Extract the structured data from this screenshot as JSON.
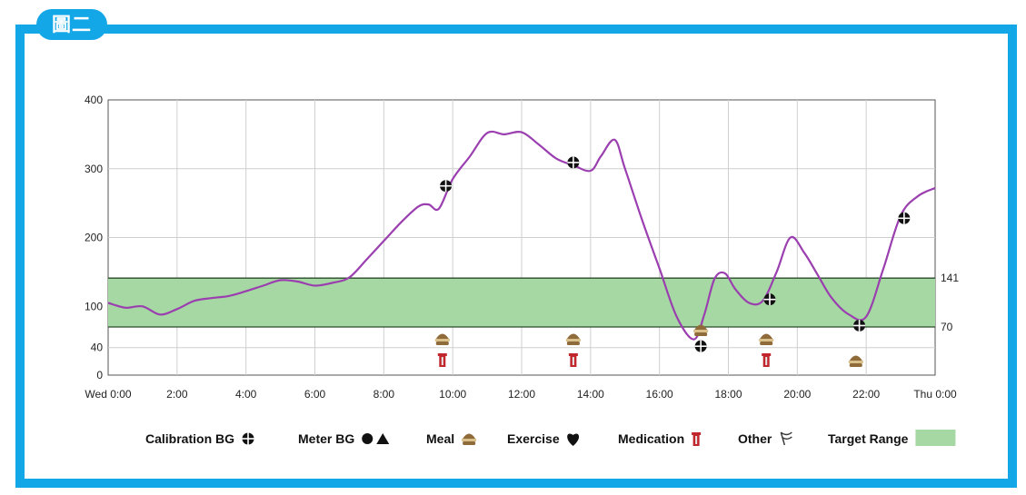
{
  "badge_label": "圖二",
  "colors": {
    "frame": "#14a7e8",
    "curve": "#9b3fb0",
    "target_fill": "#a5d8a2",
    "target_border": "#2a4a2a",
    "medication": "#c0262c",
    "meal": "#8f6a3a"
  },
  "chart_data": {
    "type": "line",
    "xlabel": "",
    "ylabel": "",
    "x_ticks": [
      "Wed 0:00",
      "2:00",
      "4:00",
      "6:00",
      "8:00",
      "10:00",
      "12:00",
      "14:00",
      "16:00",
      "18:00",
      "20:00",
      "22:00",
      "Thu 0:00"
    ],
    "y_ticks": [
      0,
      40,
      100,
      200,
      300,
      400
    ],
    "target_range_labels": [
      "141",
      "70"
    ],
    "xlim_hours": [
      0,
      24
    ],
    "ylim": [
      0,
      400
    ],
    "target_range": [
      70,
      141
    ],
    "grid": true,
    "series": [
      {
        "x_hours": [
          0,
          0.5,
          1,
          1.5,
          2,
          2.5,
          3,
          3.5,
          4,
          4.5,
          5,
          5.5,
          6,
          6.5,
          7,
          7.5,
          8,
          8.5,
          9,
          9.3,
          9.6,
          10,
          10.5,
          11,
          11.5,
          12,
          12.5,
          13,
          13.5,
          14,
          14.3,
          14.7,
          15,
          15.5,
          16,
          16.5,
          17,
          17.3,
          17.6,
          17.9,
          18.2,
          18.6,
          19,
          19.4,
          19.8,
          20.2,
          20.6,
          21,
          21.5,
          22,
          22.5,
          23,
          23.5,
          24
        ],
        "values": [
          105,
          98,
          100,
          88,
          96,
          108,
          112,
          115,
          122,
          130,
          138,
          136,
          130,
          134,
          142,
          168,
          195,
          222,
          245,
          248,
          242,
          285,
          318,
          352,
          350,
          353,
          335,
          315,
          305,
          297,
          318,
          342,
          300,
          225,
          155,
          85,
          52,
          88,
          140,
          148,
          125,
          105,
          108,
          150,
          200,
          178,
          145,
          112,
          88,
          85,
          155,
          232,
          260,
          272
        ]
      }
    ],
    "calibration_bg": [
      {
        "x_hours": 9.8,
        "value": 275
      },
      {
        "x_hours": 13.5,
        "value": 309
      },
      {
        "x_hours": 17.2,
        "value": 42
      },
      {
        "x_hours": 19.2,
        "value": 110
      },
      {
        "x_hours": 21.8,
        "value": 72
      },
      {
        "x_hours": 23.1,
        "value": 228
      }
    ],
    "meal_markers": [
      {
        "x_hours": 9.7
      },
      {
        "x_hours": 13.5
      },
      {
        "x_hours": 17.2
      },
      {
        "x_hours": 19.1
      },
      {
        "x_hours": 21.7
      }
    ],
    "medication_markers": [
      {
        "x_hours": 9.7
      },
      {
        "x_hours": 13.5
      },
      {
        "x_hours": 19.1
      }
    ],
    "legend": [
      {
        "label": "Calibration BG",
        "icon": "calibration-icon"
      },
      {
        "label": "Meter BG",
        "icon": "meter-icon"
      },
      {
        "label": "Meal",
        "icon": "meal-icon"
      },
      {
        "label": "Exercise",
        "icon": "heart-icon"
      },
      {
        "label": "Medication",
        "icon": "medication-icon"
      },
      {
        "label": "Other",
        "icon": "flag-icon"
      },
      {
        "label": "Target Range",
        "icon": "target-swatch"
      }
    ]
  }
}
